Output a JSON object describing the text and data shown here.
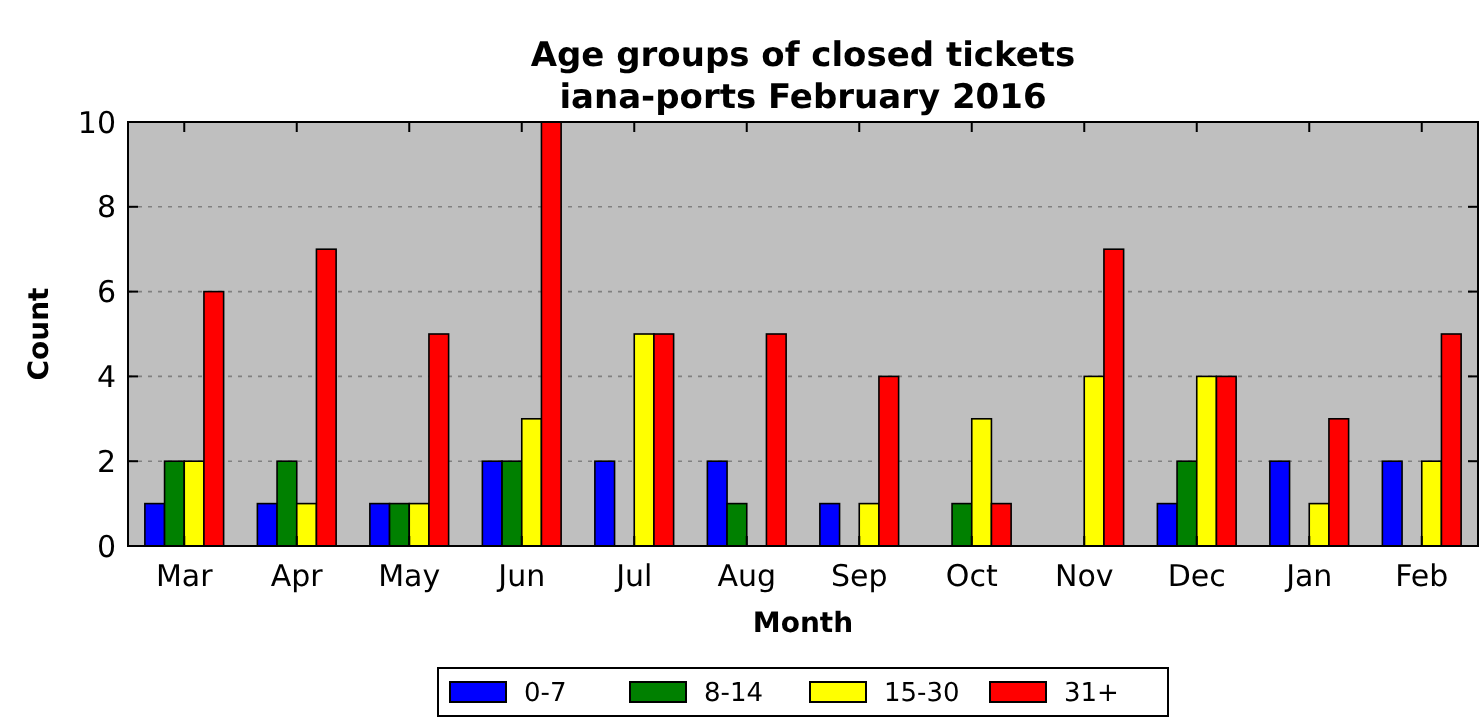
{
  "chart_data": {
    "type": "bar",
    "title": "Age groups of closed tickets\niana-ports February 2016",
    "xlabel": "Month",
    "ylabel": "Count",
    "categories": [
      "Mar",
      "Apr",
      "May",
      "Jun",
      "Jul",
      "Aug",
      "Sep",
      "Oct",
      "Nov",
      "Dec",
      "Jan",
      "Feb"
    ],
    "series": [
      {
        "name": "0-7",
        "color": "#0000ff",
        "values": [
          1,
          1,
          1,
          2,
          2,
          2,
          1,
          0,
          0,
          1,
          2,
          2
        ]
      },
      {
        "name": "8-14",
        "color": "#008000",
        "values": [
          2,
          2,
          1,
          2,
          0,
          1,
          0,
          1,
          0,
          2,
          0,
          0
        ]
      },
      {
        "name": "15-30",
        "color": "#ffff00",
        "values": [
          2,
          1,
          1,
          3,
          5,
          0,
          1,
          3,
          4,
          4,
          1,
          2
        ]
      },
      {
        "name": "31+",
        "color": "#ff0000",
        "values": [
          6,
          7,
          5,
          10,
          5,
          5,
          4,
          1,
          7,
          4,
          3,
          5
        ]
      }
    ],
    "ylim": [
      0,
      10
    ],
    "yticks": [
      0,
      2,
      4,
      6,
      8,
      10
    ],
    "grid": "y",
    "legend": "bottom"
  }
}
